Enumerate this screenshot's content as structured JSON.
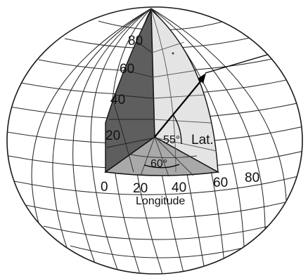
{
  "figure": {
    "latitude_ticks": [
      "80",
      "60",
      "40",
      "20"
    ],
    "longitude_ticks": [
      "0",
      "20",
      "40",
      "60",
      "80"
    ],
    "longitude_label": "Longitude",
    "latitude_label": "Lat.",
    "latitude_angle": "55°",
    "longitude_angle": "60°"
  }
}
